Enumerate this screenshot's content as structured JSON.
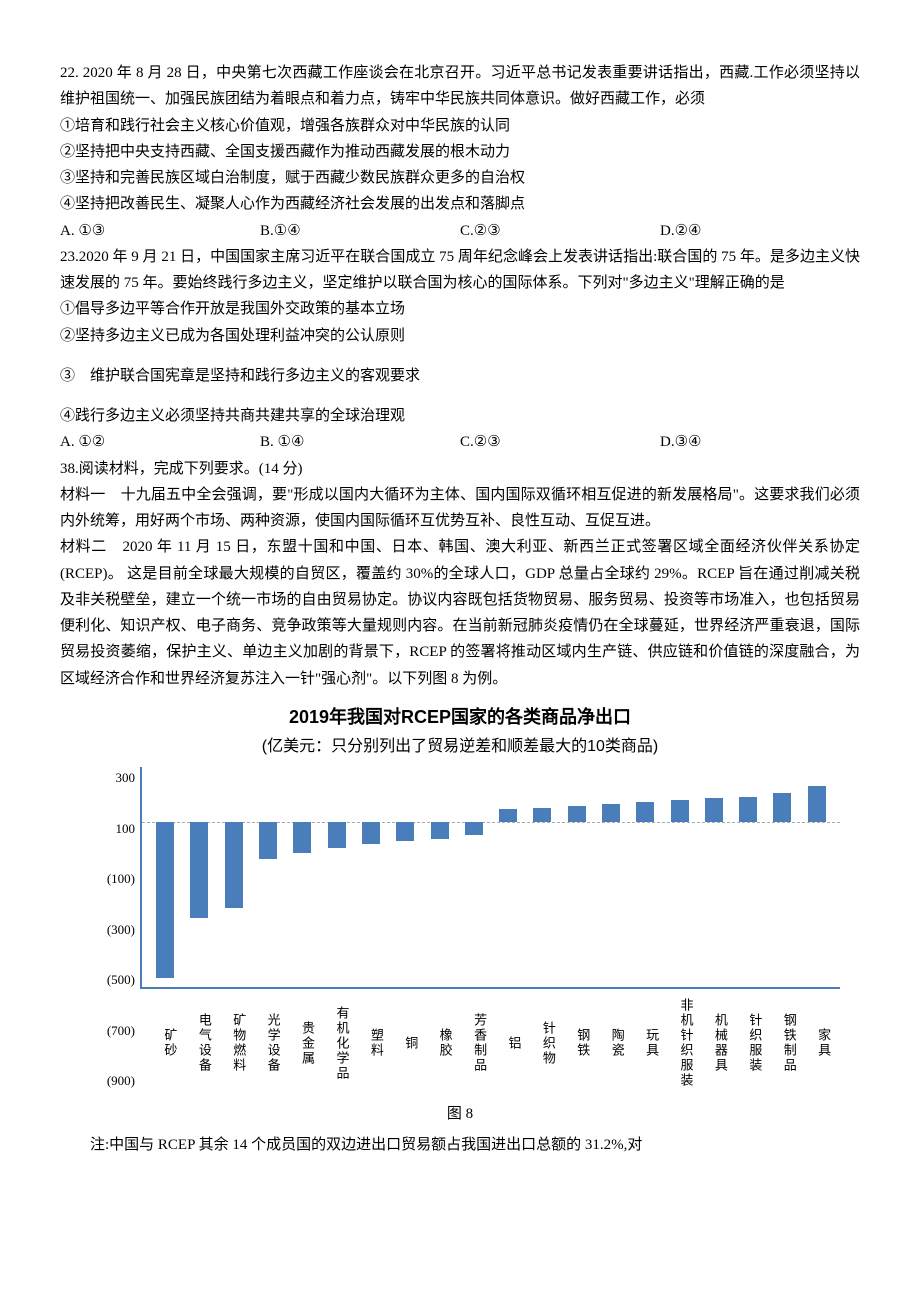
{
  "q22": {
    "stem": "22. 2020 年 8 月 28 日，中央第七次西藏工作座谈会在北京召开。习近平总书记发表重要讲话指出，西藏.工作必须坚持以维护祖国统一、加强民族团结为着眼点和着力点，铸牢中华民族共同体意识。做好西藏工作，必须",
    "lines": [
      "①培育和践行社会主义核心价值观，增强各族群众对中华民族的认同",
      "②坚持把中央支持西藏、全国支援西藏作为推动西藏发展的根木动力",
      "③坚持和完善民族区域白治制度，赋于西藏少数民族群众更多的自治权",
      "④坚持把改善民生、凝聚人心作为西藏经济社会发展的出发点和落脚点"
    ],
    "opts": [
      "A. ①③",
      "B.①④",
      "C.②③",
      "D.②④"
    ]
  },
  "q23": {
    "stem": "23.2020 年 9 月 21 日，中国国家主席习近平在联合国成立 75 周年纪念峰会上发表讲话指出:联合国的 75 年。是多边主义快速发展的 75 年。要始终践行多边主义，坚定维护以联合国为核心的国际体系。下列对\"多边主义\"理解正确的是",
    "lines": [
      "①倡导多边平等合作开放是我国外交政策的基本立场",
      "②坚持多边主义已成为各国处理利益冲突的公认原则"
    ],
    "line3": "③　维护联合国宪章是坚持和践行多边主义的客观要求",
    "line4": "④践行多边主义必须坚持共商共建共享的全球治理观",
    "opts": [
      "A. ①②",
      "B. ①④",
      "C.②③",
      "D.③④"
    ]
  },
  "q38": {
    "title": "38.阅读材料，完成下列要求。(14 分)",
    "m1": "材料一　十九届五中全会强调，要\"形成以国内大循环为主体、国内国际双循环相互促进的新发展格局\"。这要求我们必须内外统筹，用好两个市场、两种资源，使国内国际循环互优势互补、良性互动、互促互进。",
    "m2": "材料二　2020 年 11 月 15 日，东盟十国和中国、日本、韩国、澳大利亚、新西兰正式签署区域全面经济伙伴关系协定(RCEP)。 这是目前全球最大规模的自贸区，覆盖约 30%的全球人口，GDP 总量占全球约 29%。RCEP 旨在通过削减关税及非关税壁垒，建立一个统一市场的自由贸易协定。协议内容既包括货物贸易、服务贸易、投资等市场准入，也包括贸易便利化、知识产权、电子商务、竞争政策等大量规则内容。在当前新冠肺炎疫情仍在全球蔓延，世界经济严重衰退，国际贸易投资萎缩，保护主义、单边主义加剧的背景下，RCEP 的签署将推动区域内生产链、供应链和价值链的深度融合，为区域经济合作和世界经济复苏注入一针\"强心剂\"。以下列图 8 为例。"
  },
  "chart": {
    "title": "2019年我国对RCEP国家的各类商品净出口",
    "subtitle": "(亿美元：只分别列出了贸易逆差和顺差最大的10类商品)",
    "y_ticks": [
      "300",
      "100",
      "(100)",
      "(300)",
      "(500)",
      "(700)",
      "(900)"
    ],
    "y_min": -900,
    "y_max": 300,
    "bar_color": "#4a7ebb",
    "axis_color": "#4a7ebb",
    "categories": [
      "矿砂",
      "电气设备",
      "矿物燃料",
      "光学设备",
      "贵金属",
      "有机化学品",
      "塑料",
      "铜",
      "橡胶",
      "芳香制品",
      "铝",
      "针织物",
      "钢铁",
      "陶瓷",
      "玩具",
      "非机针织服装",
      "机械器具",
      "针织服装",
      "钢铁制品",
      "家具"
    ],
    "values": [
      -850,
      -520,
      -470,
      -200,
      -170,
      -140,
      -120,
      -100,
      -90,
      -70,
      70,
      80,
      90,
      100,
      110,
      120,
      130,
      140,
      160,
      200
    ]
  },
  "fig_caption": "图 8",
  "note": "注:中国与 RCEP 其余 14 个成员国的双边进出口贸易额占我国进出口总额的 31.2%,对"
}
